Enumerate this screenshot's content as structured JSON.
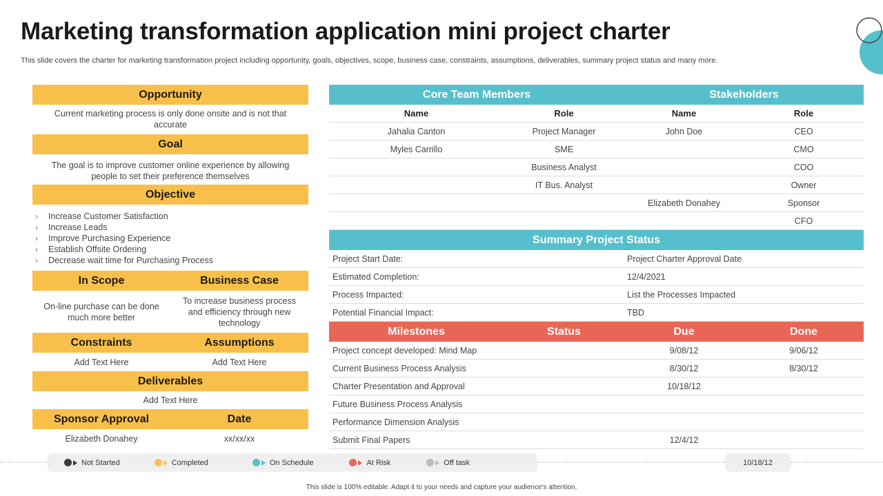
{
  "title": "Marketing transformation application mini project charter",
  "subtitle": "This slide covers the charter for marketing transformation project including opportunity, goals, objectives, scope, business case, constraints, assumptions, deliverables, summary project status and many more.",
  "opportunity": {
    "label": "Opportunity",
    "text": "Current  marketing process is only done onsite and is not that accurate"
  },
  "goal": {
    "label": "Goal",
    "text": "The goal is to improve  customer online experience  by allowing people to set their preference  themselves"
  },
  "objective": {
    "label": "Objective",
    "items": [
      "Increase Customer Satisfaction",
      "Increase Leads",
      "Improve  Purchasing Experience",
      "Establish Offsite Ordering",
      "Decrease wait time for Purchasing Process"
    ]
  },
  "scope": {
    "label": "In Scope",
    "text": "On-line purchase can be done much more better"
  },
  "business_case": {
    "label": "Business Case",
    "text": "To increase business process and efficiency through new technology"
  },
  "constraints": {
    "label": "Constraints",
    "text": "Add Text Here"
  },
  "assumptions": {
    "label": "Assumptions",
    "text": "Add Text Here"
  },
  "deliverables": {
    "label": "Deliverables",
    "text": "Add Text Here"
  },
  "sponsor_approval": {
    "label": "Sponsor Approval",
    "text": "Elizabeth Donahey"
  },
  "date": {
    "label": "Date",
    "text": "xx/xx/xx"
  },
  "team": {
    "core_label": "Core Team Members",
    "stakeholders_label": "Stakeholders",
    "headers": [
      "Name",
      "Role",
      "Name",
      "Role"
    ],
    "rows": [
      [
        "Jahalia Canton",
        "Project Manager",
        "John Doe",
        "CEO"
      ],
      [
        "Myles Carrillo",
        "SME",
        "",
        "CMO"
      ],
      [
        "",
        "Business Analyst",
        "",
        "COO"
      ],
      [
        "",
        "IT Bus.  Analyst",
        "",
        "Owner"
      ],
      [
        "",
        "",
        "Elizabeth Donahey",
        "Sponsor"
      ],
      [
        "",
        "",
        "",
        "CFO"
      ]
    ]
  },
  "summary": {
    "label": "Summary Project Status",
    "rows": [
      [
        "Project Start Date:",
        "Project Charter  Approval  Date"
      ],
      [
        "Estimated Completion:",
        "12/4/2021"
      ],
      [
        "Process Impacted:",
        "List the Processes Impacted"
      ],
      [
        "Potential Financial Impact:",
        "TBD"
      ]
    ]
  },
  "milestones": {
    "headers": [
      "Milestones",
      "Status",
      "Due",
      "Done"
    ],
    "rows": [
      [
        "Project concept developed:  Mind Map",
        "",
        "9/08/12",
        "9/06/12"
      ],
      [
        "Current  Business Process Analysis",
        "",
        "8/30/12",
        "8/30/12"
      ],
      [
        "Charter Presentation and Approval",
        "",
        "10/18/12",
        ""
      ],
      [
        "Future Business Process Analysis",
        "",
        "",
        ""
      ],
      [
        "Performance  Dimension Analysis",
        "",
        "",
        ""
      ],
      [
        "Submit Final Papers",
        "",
        "12/4/12",
        ""
      ]
    ]
  },
  "legend": {
    "items": [
      {
        "label": "Not Started",
        "color": "#3a3a3a"
      },
      {
        "label": "Completed",
        "color": "#f8c04a"
      },
      {
        "label": "On Schedule",
        "color": "#56bfcc"
      },
      {
        "label": "At Risk",
        "color": "#e96656"
      },
      {
        "label": "Off task",
        "color": "#bdbdbd"
      }
    ],
    "date": "10/18/12"
  },
  "footer": "This slide is 100% editable. Adapt it to your needs and capture your audience's attention."
}
